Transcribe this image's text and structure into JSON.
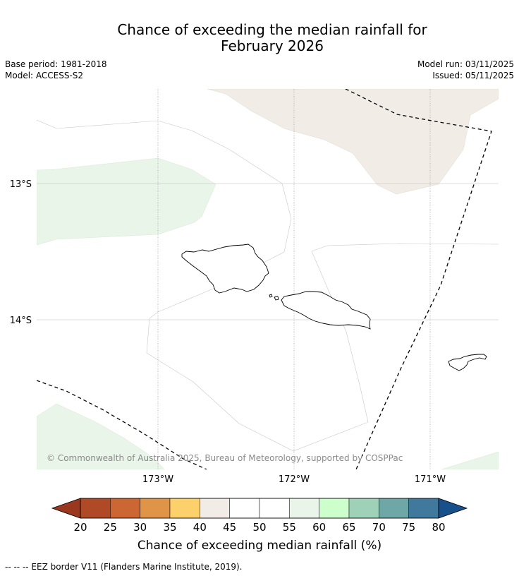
{
  "header": {
    "title_line1": "Chance of exceeding the median rainfall for",
    "title_line2": "February 2026",
    "base_period": "Base period: 1981-2018",
    "model": "Model: ACCESS-S2",
    "model_run": "Model run: 03/11/2025",
    "issued": "Issued: 05/11/2025"
  },
  "map": {
    "lat_labels": [
      "13°S",
      "14°S"
    ],
    "lon_labels": [
      "173°W",
      "172°W",
      "171°W"
    ],
    "copyright": "© Commonwealth of Australia 2025, Bureau of Meteorology, supported by COSPPac",
    "colors": {
      "class_40_45": "#f1ede6",
      "class_55_60": "#e9f5e9",
      "land_outline": "#000000",
      "eez_border": "#000000"
    }
  },
  "colorbar": {
    "ticks": [
      "20",
      "25",
      "30",
      "35",
      "40",
      "45",
      "50",
      "55",
      "60",
      "65",
      "70",
      "75",
      "80"
    ],
    "label": "Chance of exceeding median rainfall (%)",
    "colors": [
      "#b04a26",
      "#cc6633",
      "#e09448",
      "#fcd16b",
      "#f1ede6",
      "#ffffff",
      "#ffffff",
      "#e9f5e9",
      "#ccffcc",
      "#9fd0b8",
      "#6fa7a7",
      "#41799c"
    ],
    "under_color": "#99381f",
    "over_color": "#17508b"
  },
  "footer": {
    "legend_text": "--  --  -- EEZ border V11 (Flanders Marine Institute, 2019)."
  }
}
